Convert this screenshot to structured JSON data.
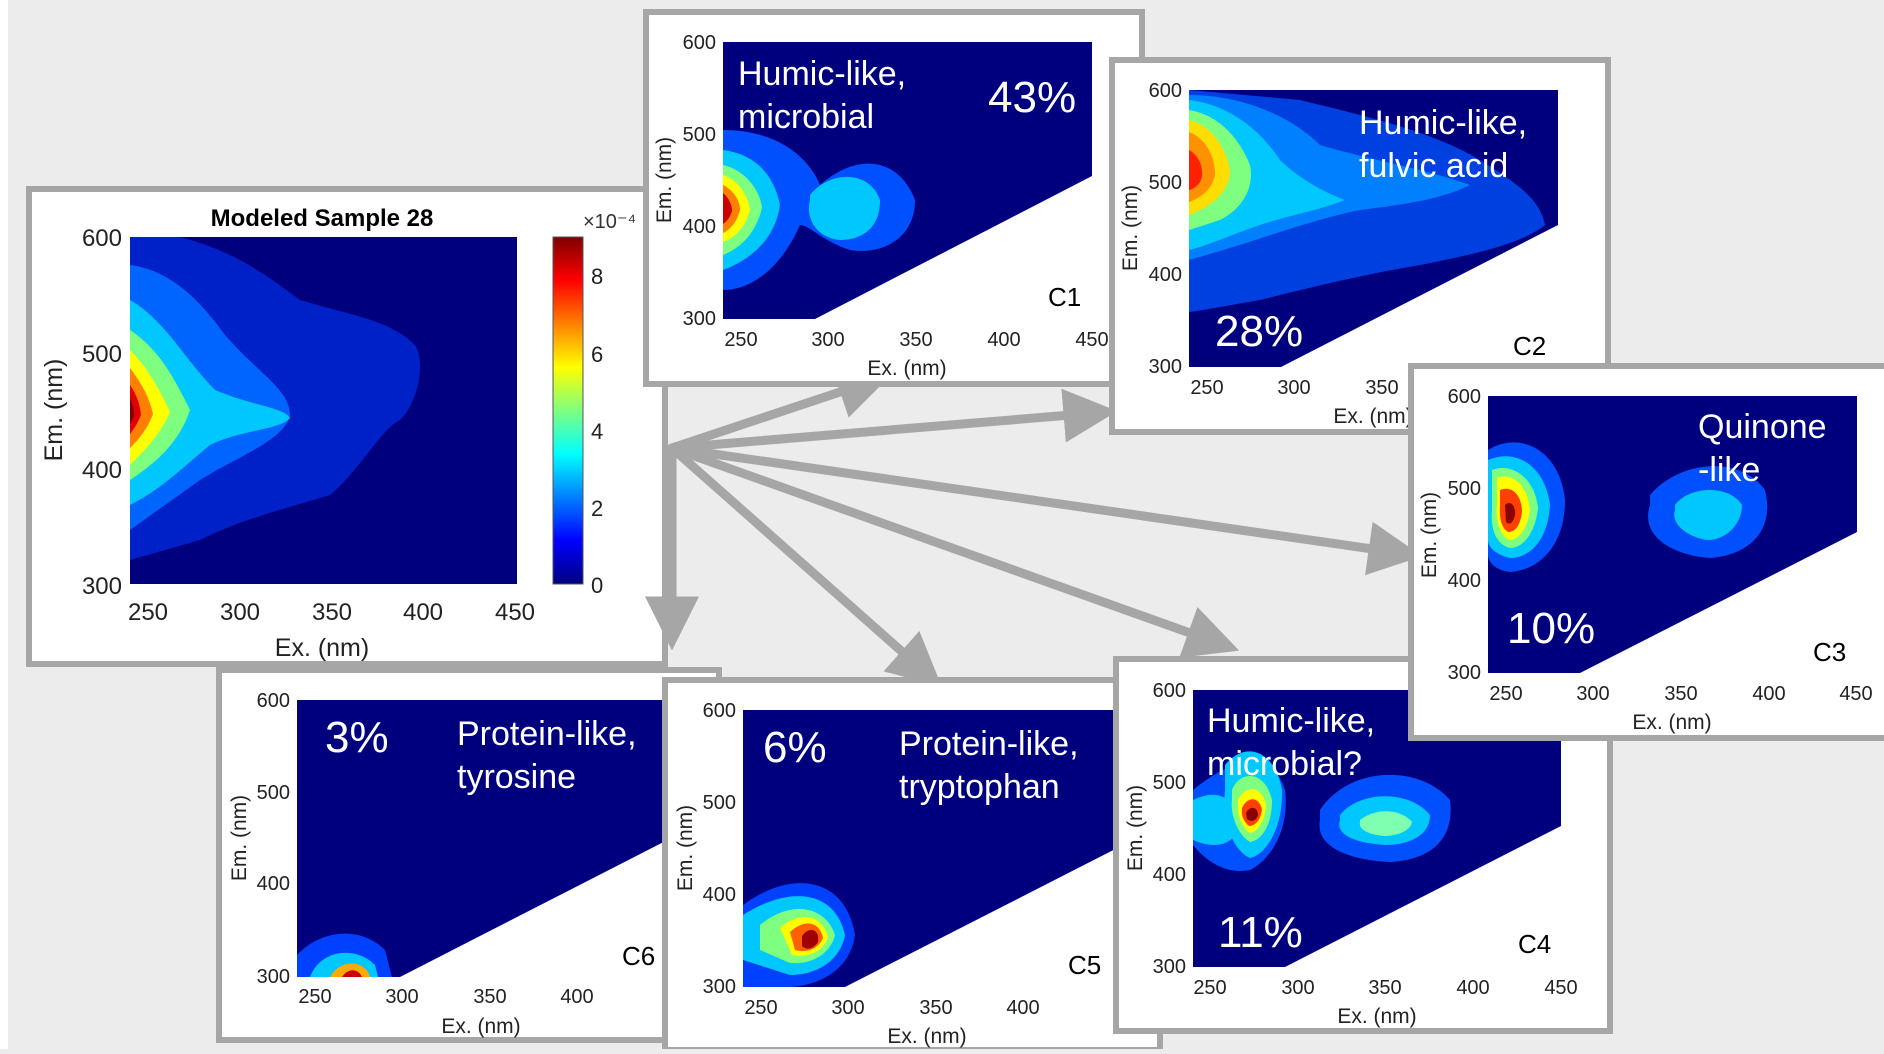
{
  "main": {
    "title": "Modeled Sample 28",
    "x_label": "Ex. (nm)",
    "y_label": "Em. (nm)",
    "x_ticks": [
      "250",
      "300",
      "350",
      "400",
      "450"
    ],
    "y_ticks": [
      "600",
      "500",
      "400",
      "300"
    ],
    "colorbar_exponent": "×10⁻⁴",
    "colorbar_ticks": [
      "8",
      "6",
      "4",
      "2",
      "0"
    ]
  },
  "components": [
    {
      "id": "C1",
      "label_line1": "Humic-like,",
      "label_line2": "microbial",
      "percent": "43%"
    },
    {
      "id": "C2",
      "label_line1": "Humic-like,",
      "label_line2": "fulvic acid",
      "percent": "28%"
    },
    {
      "id": "C3",
      "label_line1": "Quinone",
      "label_line2": "-like",
      "percent": "10%"
    },
    {
      "id": "C4",
      "label_line1": "Humic-like,",
      "label_line2": "microbial?",
      "percent": "11%"
    },
    {
      "id": "C5",
      "label_line1": "Protein-like,",
      "label_line2": "tryptophan",
      "percent": "6%"
    },
    {
      "id": "C6",
      "label_line1": "Protein-like,",
      "label_line2": "tyrosine",
      "percent": "3%"
    }
  ],
  "colors": {
    "background": "#ececec",
    "panel_border": "#a6a6a6",
    "plot_bg": "#00007f",
    "arrow": "#a6a6a6",
    "label_text": "#ffffff"
  }
}
